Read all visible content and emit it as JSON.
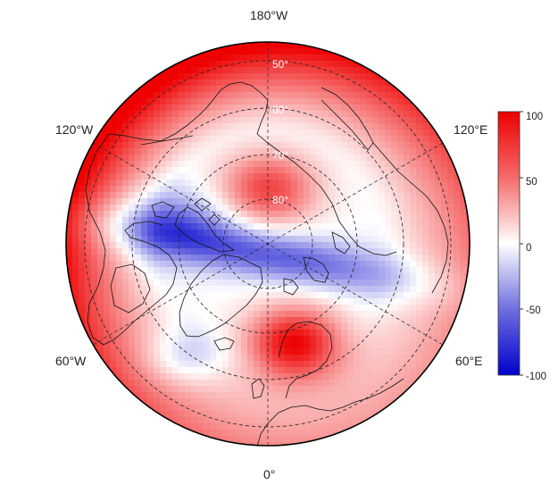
{
  "map": {
    "projection": "north-polar-stereographic",
    "center_longitude_bottom": "0",
    "latitude_circles": [
      {
        "lat": 50,
        "label": "50°"
      },
      {
        "lat": 60,
        "label": "60°"
      },
      {
        "lat": 70,
        "label": "70°"
      },
      {
        "lat": 80,
        "label": "80°"
      }
    ],
    "longitude_labels": {
      "top": "180°W",
      "bottom": "0°",
      "upper_left": "120°W",
      "upper_right": "120°E",
      "lower_left": "60°W",
      "lower_right": "60°E"
    },
    "field_features": [
      {
        "name": "positive-pole-center",
        "value": 75
      },
      {
        "name": "negative-band-atlantic-siberia",
        "value": -65
      },
      {
        "name": "positive-scandinavia",
        "value": 100
      },
      {
        "name": "positive-rim-pacific",
        "value": 85
      }
    ]
  },
  "colorbar": {
    "min": -100,
    "max": 100,
    "ticks": [
      "100",
      "50",
      "0",
      "-50",
      "-100"
    ],
    "tick_values": [
      100,
      50,
      0,
      -50,
      -100
    ],
    "colors": {
      "low": "#0000cc",
      "mid": "#ffffff",
      "high": "#ee0000"
    }
  }
}
